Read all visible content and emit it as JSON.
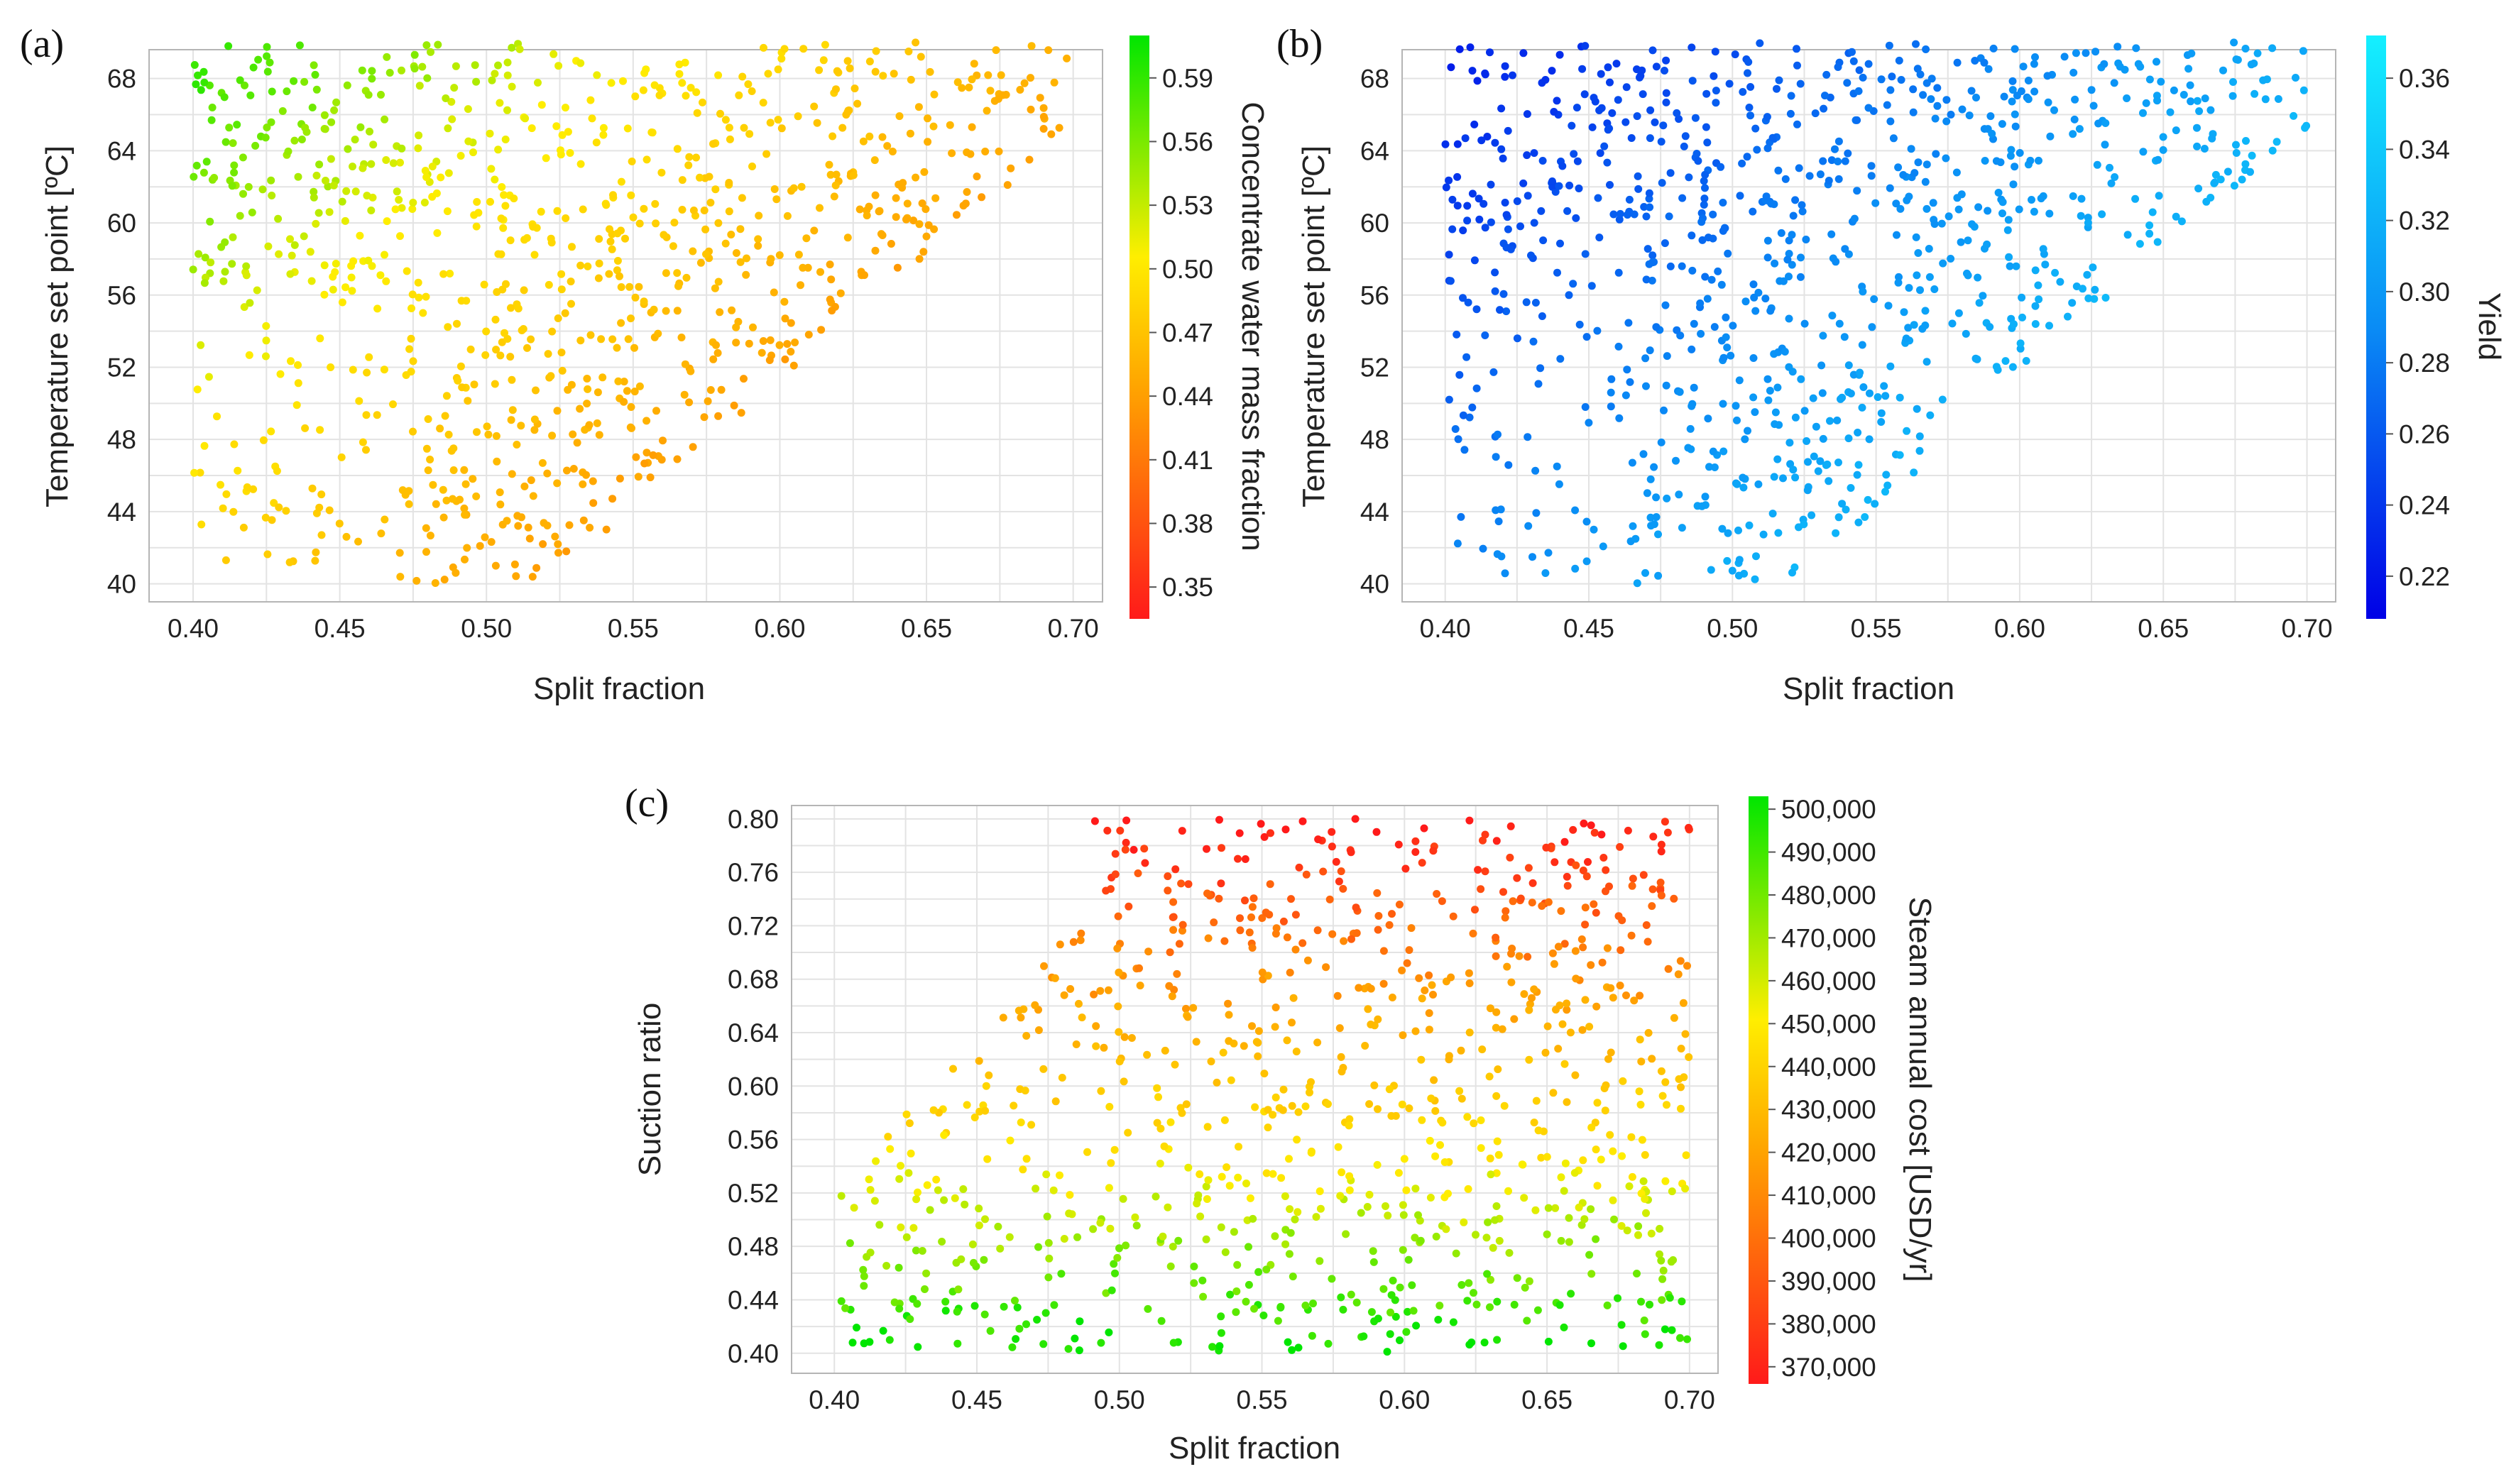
{
  "chart_data": [
    {
      "type": "scatter",
      "panel_label": "(a)",
      "xlabel": "Split fraction",
      "ylabel": "Temperature  set point [ºC]",
      "xlim": [
        0.385,
        0.71
      ],
      "ylim": [
        39,
        69.6
      ],
      "x_ticks": [
        0.4,
        0.45,
        0.5,
        0.55,
        0.6,
        0.65,
        0.7
      ],
      "x_tick_labels": [
        "0.40",
        "0.45",
        "0.50",
        "0.55",
        "0.60",
        "0.65",
        "0.70"
      ],
      "y_ticks": [
        40,
        44,
        48,
        52,
        56,
        60,
        64,
        68
      ],
      "y_tick_labels": [
        "40",
        "44",
        "48",
        "52",
        "56",
        "60",
        "64",
        "68"
      ],
      "grid": true,
      "colorbar": {
        "label": "Concentrate water mass fraction",
        "range": [
          0.335,
          0.61
        ],
        "ticks": [
          0.35,
          0.38,
          0.41,
          0.44,
          0.47,
          0.5,
          0.53,
          0.56,
          0.59
        ],
        "tick_labels": [
          "0.35",
          "0.38",
          "0.41",
          "0.44",
          "0.47",
          "0.50",
          "0.53",
          "0.56",
          "0.59"
        ],
        "colors_low_to_high": [
          "#ff1a1a",
          "#ffa500",
          "#ffee00",
          "#00e600"
        ]
      },
      "n_points": 900,
      "color_value": "decreases with split fraction and increases with temperature"
    },
    {
      "type": "scatter",
      "panel_label": "(b)",
      "xlabel": "Split fraction",
      "ylabel": "Temperature  set point [ºC]",
      "xlim": [
        0.385,
        0.71
      ],
      "ylim": [
        39,
        69.6
      ],
      "x_ticks": [
        0.4,
        0.45,
        0.5,
        0.55,
        0.6,
        0.65,
        0.7
      ],
      "x_tick_labels": [
        "0.40",
        "0.45",
        "0.50",
        "0.55",
        "0.60",
        "0.65",
        "0.70"
      ],
      "y_ticks": [
        40,
        44,
        48,
        52,
        56,
        60,
        64,
        68
      ],
      "y_tick_labels": [
        "40",
        "44",
        "48",
        "52",
        "56",
        "60",
        "64",
        "68"
      ],
      "grid": true,
      "colorbar": {
        "label": "Yield",
        "range": [
          0.208,
          0.372
        ],
        "ticks": [
          0.22,
          0.24,
          0.26,
          0.28,
          0.3,
          0.32,
          0.34,
          0.36
        ],
        "tick_labels": [
          "0.22",
          "0.24",
          "0.26",
          "0.28",
          "0.30",
          "0.32",
          "0.34",
          "0.36"
        ],
        "colors_low_to_high": [
          "#0000e6",
          "#0a8cf5",
          "#14f0ff"
        ]
      },
      "n_points": 900,
      "color_value": "increases with split fraction and decreases with temperature"
    },
    {
      "type": "scatter",
      "panel_label": "(c)",
      "xlabel": "Split fraction",
      "ylabel": "Suction ratio",
      "xlim": [
        0.385,
        0.71
      ],
      "ylim": [
        0.385,
        0.81
      ],
      "x_ticks": [
        0.4,
        0.45,
        0.5,
        0.55,
        0.6,
        0.65,
        0.7
      ],
      "x_tick_labels": [
        "0.40",
        "0.45",
        "0.50",
        "0.55",
        "0.60",
        "0.65",
        "0.70"
      ],
      "y_ticks": [
        0.4,
        0.44,
        0.48,
        0.52,
        0.56,
        0.6,
        0.64,
        0.68,
        0.72,
        0.76,
        0.8
      ],
      "y_tick_labels": [
        "0.40",
        "0.44",
        "0.48",
        "0.52",
        "0.56",
        "0.60",
        "0.64",
        "0.68",
        "0.72",
        "0.76",
        "0.80"
      ],
      "grid": true,
      "colorbar": {
        "label": "Steam annual cost [USD/yr]",
        "range": [
          366000,
          503000
        ],
        "ticks": [
          370000,
          380000,
          390000,
          400000,
          410000,
          420000,
          430000,
          440000,
          450000,
          460000,
          470000,
          480000,
          490000,
          500000
        ],
        "tick_labels": [
          "370,000",
          "380,000",
          "390,000",
          "400,000",
          "410,000",
          "420,000",
          "430,000",
          "440,000",
          "450,000",
          "460,000",
          "470,000",
          "480,000",
          "490,000",
          "500,000"
        ],
        "colors_low_to_high": [
          "#ff1a1a",
          "#ffa500",
          "#ffee00",
          "#00e600"
        ]
      },
      "n_points": 900,
      "color_value": "decreases with suction ratio"
    }
  ]
}
